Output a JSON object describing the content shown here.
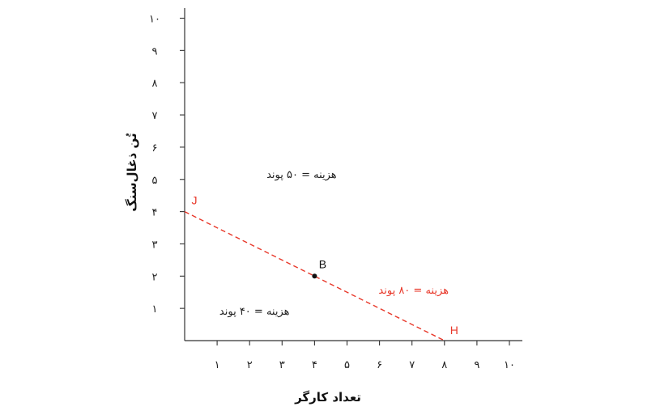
{
  "chart_data": {
    "type": "line",
    "xlabel": "تعداد کارگر",
    "ylabel": "تُن ذغال‌سنگ",
    "xlim": [
      0,
      10.5
    ],
    "ylim": [
      0,
      10
    ],
    "x_ticks": [
      1,
      2,
      3,
      4,
      5,
      6,
      7,
      8,
      9,
      10
    ],
    "y_ticks": [
      1,
      2,
      3,
      4,
      5,
      6,
      7,
      8,
      9,
      10
    ],
    "x_tick_labels": [
      "۱",
      "۲",
      "۳",
      "۴",
      "۵",
      "۶",
      "۷",
      "۸",
      "۹",
      "۱۰"
    ],
    "y_tick_labels": [
      "۱",
      "۲",
      "۳",
      "۴",
      "۵",
      "۶",
      "۷",
      "۸",
      "۹",
      "۱۰"
    ],
    "grid": false,
    "series": [
      {
        "name": "هزینه = ۸۰ پوند",
        "style": "dashed",
        "color": "#e8382a",
        "points": [
          {
            "x": 0,
            "y": 4
          },
          {
            "x": 8,
            "y": 0
          }
        ]
      }
    ],
    "points": [
      {
        "label": "J",
        "x": 0,
        "y": 4,
        "color": "#e8382a",
        "marker": false
      },
      {
        "label": "B",
        "x": 4,
        "y": 2,
        "color": "#111111",
        "marker": true
      },
      {
        "label": "H",
        "x": 8,
        "y": 0,
        "color": "#e8382a",
        "marker": false
      }
    ],
    "annotations": [
      {
        "text": "هزینه = ۵۰ پوند",
        "x": 3.6,
        "y": 5.05,
        "color": "#222222"
      },
      {
        "text": "هزینه = ۸۰ پوند",
        "x": 7.05,
        "y": 1.45,
        "color": "#e8382a"
      },
      {
        "text": "هزینه = ۴۰ پوند",
        "x": 2.15,
        "y": 0.8,
        "color": "#222222"
      }
    ]
  }
}
